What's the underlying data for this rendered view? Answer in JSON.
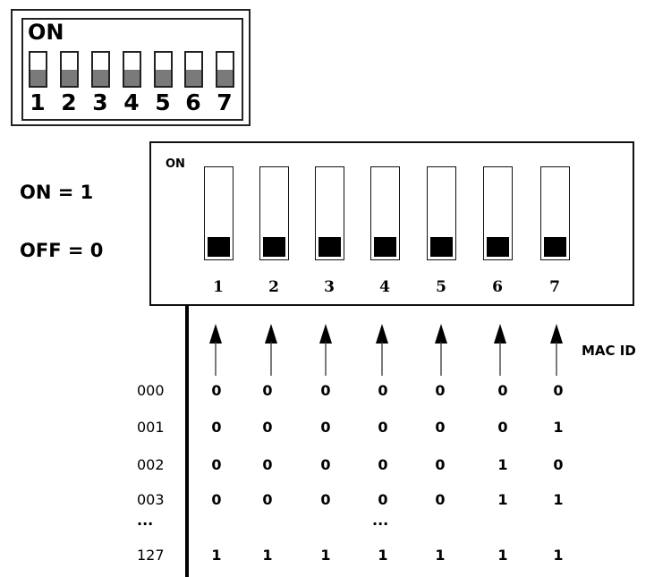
{
  "small_switch": {
    "label": "ON",
    "numbers": [
      "1",
      "2",
      "3",
      "4",
      "5",
      "6",
      "7"
    ],
    "state": [
      "off",
      "off",
      "off",
      "off",
      "off",
      "off",
      "off"
    ]
  },
  "legend": {
    "on": "ON = 1",
    "off": "OFF = 0"
  },
  "big_switch": {
    "label": "ON",
    "numbers": [
      "1",
      "2",
      "3",
      "4",
      "5",
      "6",
      "7"
    ],
    "state": [
      "off",
      "off",
      "off",
      "off",
      "off",
      "off",
      "off"
    ]
  },
  "mac_label": "MAC ID",
  "ellipsis": "...",
  "rows": [
    {
      "id": "000",
      "bits": [
        "0",
        "0",
        "0",
        "0",
        "0",
        "0",
        "0"
      ]
    },
    {
      "id": "001",
      "bits": [
        "0",
        "0",
        "0",
        "0",
        "0",
        "0",
        "1"
      ]
    },
    {
      "id": "002",
      "bits": [
        "0",
        "0",
        "0",
        "0",
        "0",
        "1",
        "0"
      ]
    },
    {
      "id": "003",
      "bits": [
        "0",
        "0",
        "0",
        "0",
        "0",
        "1",
        "1"
      ]
    },
    {
      "id": "127",
      "bits": [
        "1",
        "1",
        "1",
        "1",
        "1",
        "1",
        "1"
      ]
    }
  ]
}
